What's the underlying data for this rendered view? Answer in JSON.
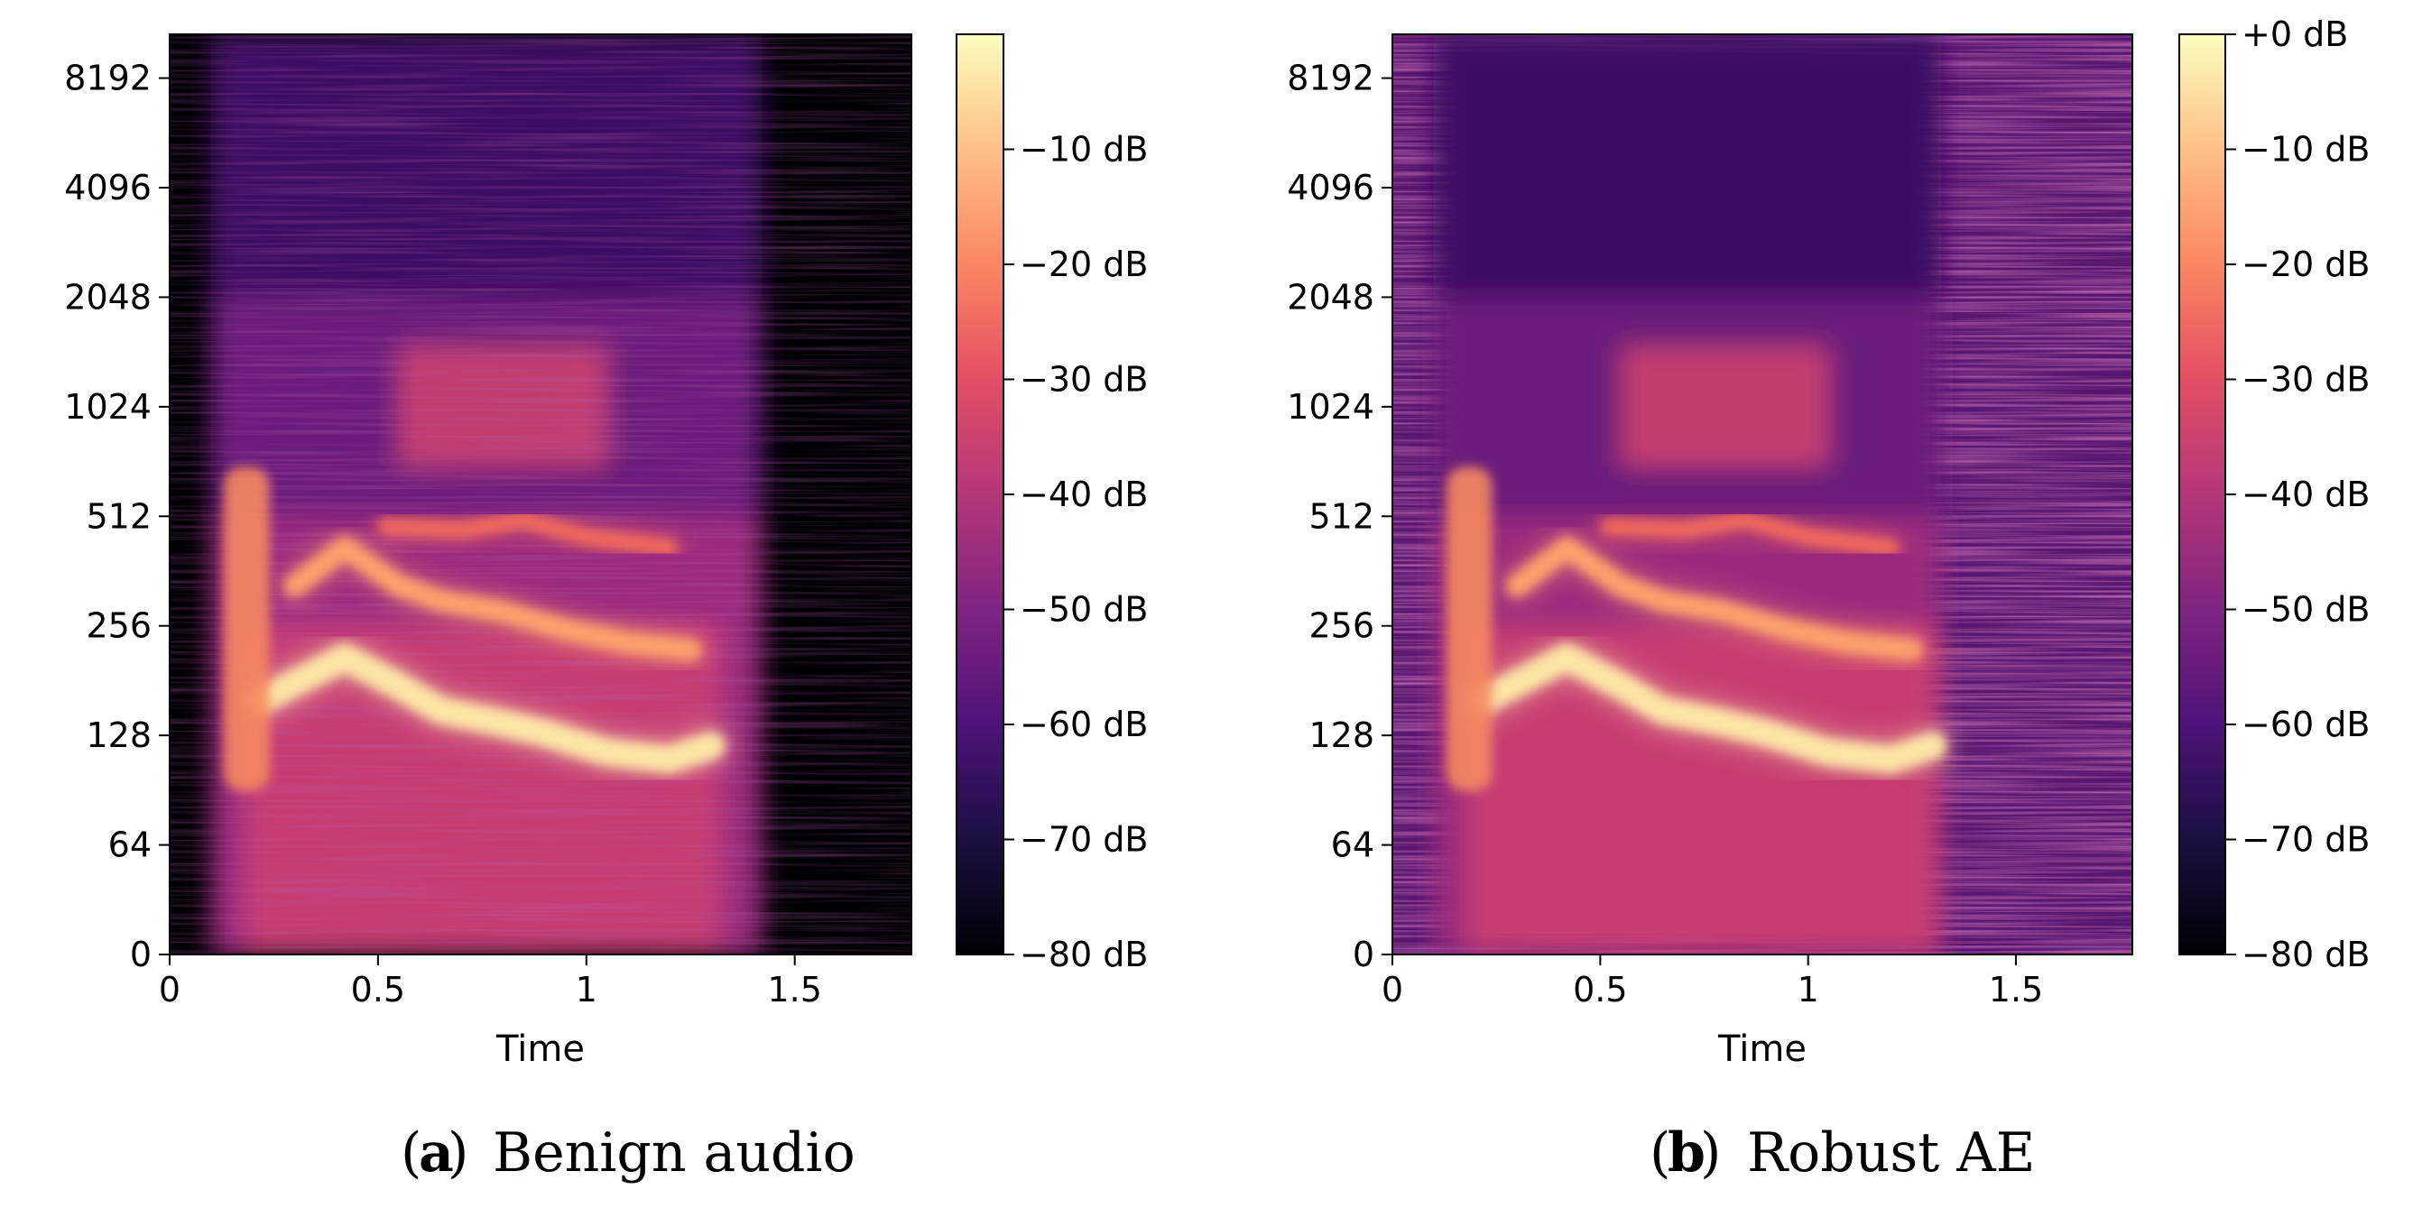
{
  "chart_data": [
    {
      "type": "heatmap",
      "panel": "a",
      "caption_letter": "a",
      "caption_text": "Benign audio",
      "xlabel": "Time",
      "ylabel": "",
      "xlim": [
        0,
        1.78
      ],
      "x_ticks": [
        0,
        0.5,
        1,
        1.5
      ],
      "x_tick_labels": [
        "0",
        "0.5",
        "1",
        "1.5"
      ],
      "y_scale": "symlog",
      "y_ticks": [
        0,
        64,
        128,
        256,
        512,
        1024,
        2048,
        4096,
        8192
      ],
      "y_tick_labels": [
        "0",
        "64",
        "128",
        "256",
        "512",
        "1024",
        "2048",
        "4096",
        "8192"
      ],
      "colormap": "magma",
      "colorbar": {
        "range_db": [
          -80,
          0
        ],
        "ticks": [
          -10,
          -20,
          -30,
          -40,
          -50,
          -60,
          -70,
          -80
        ],
        "tick_labels": [
          "−10 dB",
          "−20 dB",
          "−30 dB",
          "−40 dB",
          "−50 dB",
          "−60 dB",
          "−70 dB",
          "−80 dB"
        ]
      },
      "signal_span_s": [
        0.1,
        1.42
      ],
      "noise_floor": "low",
      "harmonic_contours": [
        {
          "name": "f0",
          "points": [
            [
              0.22,
              160
            ],
            [
              0.42,
              210
            ],
            [
              0.55,
              175
            ],
            [
              0.65,
              150
            ],
            [
              0.78,
              140
            ],
            [
              0.9,
              130
            ],
            [
              1.05,
              115
            ],
            [
              1.2,
              110
            ],
            [
              1.3,
              120
            ]
          ]
        },
        {
          "name": "h2",
          "points": [
            [
              0.3,
              330
            ],
            [
              0.42,
              420
            ],
            [
              0.55,
              330
            ],
            [
              0.65,
              300
            ],
            [
              0.8,
              280
            ],
            [
              0.95,
              250
            ],
            [
              1.1,
              230
            ],
            [
              1.25,
              220
            ]
          ]
        },
        {
          "name": "h3",
          "points": [
            [
              0.52,
              480
            ],
            [
              0.7,
              470
            ],
            [
              0.85,
              500
            ],
            [
              1.0,
              450
            ],
            [
              1.2,
              420
            ]
          ]
        }
      ]
    },
    {
      "type": "heatmap",
      "panel": "b",
      "caption_letter": "b",
      "caption_text": "Robust AE",
      "xlabel": "Time",
      "ylabel": "",
      "xlim": [
        0,
        1.78
      ],
      "x_ticks": [
        0,
        0.5,
        1,
        1.5
      ],
      "x_tick_labels": [
        "0",
        "0.5",
        "1",
        "1.5"
      ],
      "y_scale": "symlog",
      "y_ticks": [
        0,
        64,
        128,
        256,
        512,
        1024,
        2048,
        4096,
        8192
      ],
      "y_tick_labels": [
        "0",
        "64",
        "128",
        "256",
        "512",
        "1024",
        "2048",
        "4096",
        "8192"
      ],
      "colormap": "magma",
      "colorbar": {
        "range_db": [
          -80,
          0
        ],
        "ticks": [
          0,
          -10,
          -20,
          -30,
          -40,
          -50,
          -60,
          -70,
          -80
        ],
        "tick_labels": [
          "+0 dB",
          "−10 dB",
          "−20 dB",
          "−30 dB",
          "−40 dB",
          "−50 dB",
          "−60 dB",
          "−70 dB",
          "−80 dB"
        ]
      },
      "signal_span_s": [
        0.1,
        1.32
      ],
      "noise_floor": "high",
      "harmonic_contours": [
        {
          "name": "f0",
          "points": [
            [
              0.22,
              160
            ],
            [
              0.42,
              210
            ],
            [
              0.55,
              175
            ],
            [
              0.65,
              150
            ],
            [
              0.78,
              140
            ],
            [
              0.9,
              130
            ],
            [
              1.05,
              115
            ],
            [
              1.2,
              110
            ],
            [
              1.3,
              120
            ]
          ]
        },
        {
          "name": "h2",
          "points": [
            [
              0.3,
              330
            ],
            [
              0.42,
              420
            ],
            [
              0.55,
              330
            ],
            [
              0.65,
              300
            ],
            [
              0.8,
              280
            ],
            [
              0.95,
              250
            ],
            [
              1.1,
              230
            ],
            [
              1.25,
              220
            ]
          ]
        },
        {
          "name": "h3",
          "points": [
            [
              0.52,
              480
            ],
            [
              0.7,
              470
            ],
            [
              0.85,
              500
            ],
            [
              1.0,
              450
            ],
            [
              1.2,
              420
            ]
          ]
        }
      ]
    }
  ]
}
